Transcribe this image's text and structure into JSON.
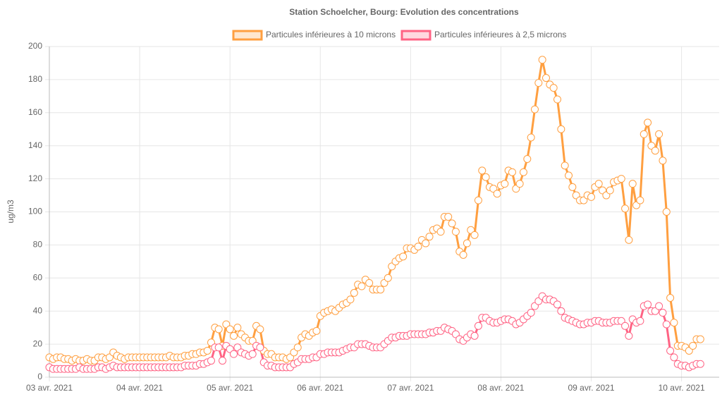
{
  "chart_data": {
    "type": "line",
    "title": "Station Schoelcher, Bourg: Evolution des concentrations",
    "y_label": "ug/m3",
    "xlim": [
      0,
      178
    ],
    "xticks": [
      {
        "value": 0,
        "label": "03 avr. 2021"
      },
      {
        "value": 24,
        "label": "04 avr. 2021"
      },
      {
        "value": 48,
        "label": "05 avr. 2021"
      },
      {
        "value": 72,
        "label": "06 avr. 2021"
      },
      {
        "value": 96,
        "label": "07 avr. 2021"
      },
      {
        "value": 120,
        "label": "08 avr. 2021"
      },
      {
        "value": 144,
        "label": "09 avr. 2021"
      },
      {
        "value": 168,
        "label": "10 avr. 2021"
      }
    ],
    "ylim": [
      0,
      200
    ],
    "yticks": [
      0,
      20,
      40,
      60,
      80,
      100,
      120,
      140,
      160,
      180,
      200
    ],
    "grid": true,
    "legend": "top",
    "x": [
      0,
      1,
      2,
      3,
      4,
      5,
      6,
      7,
      8,
      9,
      10,
      11,
      12,
      13,
      14,
      15,
      16,
      17,
      18,
      19,
      20,
      21,
      22,
      23,
      24,
      25,
      26,
      27,
      28,
      29,
      30,
      31,
      32,
      33,
      34,
      35,
      36,
      37,
      38,
      39,
      40,
      41,
      42,
      43,
      44,
      45,
      46,
      47,
      48,
      49,
      50,
      51,
      52,
      53,
      54,
      55,
      56,
      57,
      58,
      59,
      60,
      61,
      62,
      63,
      64,
      65,
      66,
      67,
      68,
      69,
      70,
      71,
      72,
      73,
      74,
      75,
      76,
      77,
      78,
      79,
      80,
      81,
      82,
      83,
      84,
      85,
      86,
      87,
      88,
      89,
      90,
      91,
      92,
      93,
      94,
      95,
      96,
      97,
      98,
      99,
      100,
      101,
      102,
      103,
      104,
      105,
      106,
      107,
      108,
      109,
      110,
      111,
      112,
      113,
      114,
      115,
      116,
      117,
      118,
      119,
      120,
      121,
      122,
      123,
      124,
      125,
      126,
      127,
      128,
      129,
      130,
      131,
      132,
      133,
      134,
      135,
      136,
      137,
      138,
      139,
      140,
      141,
      142,
      143,
      144,
      145,
      146,
      147,
      148,
      149,
      150,
      151,
      152,
      153,
      154,
      155,
      156,
      157,
      158,
      159,
      160,
      161,
      162,
      163,
      164,
      165,
      166,
      167,
      168,
      169,
      170,
      171,
      172,
      173
    ],
    "series": [
      {
        "name": "Particules inférieures à 10 microns",
        "color": "#ff9f40",
        "values": [
          12,
          11,
          12,
          12,
          11,
          11,
          10,
          11,
          10,
          10,
          11,
          10,
          10,
          12,
          12,
          11,
          12,
          15,
          13,
          12,
          11,
          12,
          12,
          12,
          12,
          12,
          12,
          12,
          12,
          12,
          12,
          12,
          13,
          12,
          12,
          12,
          13,
          13,
          14,
          14,
          15,
          15,
          16,
          21,
          30,
          29,
          19,
          32,
          29,
          25,
          30,
          26,
          24,
          22,
          22,
          31,
          29,
          16,
          14,
          14,
          12,
          12,
          12,
          11,
          12,
          15,
          18,
          24,
          26,
          25,
          27,
          28,
          37,
          39,
          40,
          41,
          40,
          42,
          44,
          45,
          47,
          51,
          56,
          55,
          59,
          57,
          53,
          53,
          53,
          57,
          60,
          67,
          70,
          72,
          73,
          78,
          78,
          77,
          79,
          83,
          81,
          85,
          89,
          90,
          88,
          97,
          97,
          93,
          88,
          76,
          74,
          81,
          89,
          86,
          107,
          125,
          121,
          115,
          114,
          111,
          116,
          117,
          125,
          124,
          114,
          117,
          124,
          132,
          145,
          162,
          178,
          192,
          181,
          177,
          175,
          168,
          150,
          128,
          122,
          115,
          110,
          107,
          107,
          110,
          109,
          115,
          117,
          113,
          110,
          113,
          118,
          119,
          120,
          102,
          83,
          117,
          104,
          107,
          147,
          154,
          140,
          137,
          147,
          131,
          100,
          48,
          33,
          19,
          19,
          18,
          16,
          19,
          23,
          23
        ]
      },
      {
        "name": "Particules inférieures à 2,5 microns",
        "color": "#ff6384",
        "values": [
          6,
          5,
          5,
          5,
          5,
          5,
          5,
          5,
          6,
          5,
          5,
          5,
          5,
          6,
          6,
          5,
          6,
          7,
          6,
          6,
          6,
          6,
          6,
          6,
          6,
          6,
          6,
          6,
          6,
          6,
          6,
          6,
          6,
          6,
          6,
          6,
          7,
          7,
          7,
          7,
          8,
          8,
          9,
          10,
          18,
          18,
          10,
          19,
          17,
          14,
          18,
          15,
          14,
          13,
          14,
          19,
          18,
          9,
          7,
          7,
          6,
          6,
          6,
          6,
          6,
          8,
          9,
          11,
          11,
          11,
          12,
          12,
          14,
          14,
          15,
          15,
          15,
          15,
          16,
          17,
          18,
          18,
          20,
          20,
          20,
          19,
          18,
          18,
          18,
          20,
          22,
          24,
          24,
          25,
          25,
          25,
          26,
          26,
          26,
          26,
          26,
          27,
          27,
          28,
          28,
          30,
          29,
          28,
          26,
          23,
          22,
          24,
          26,
          25,
          31,
          36,
          36,
          34,
          33,
          33,
          34,
          35,
          35,
          34,
          32,
          33,
          35,
          37,
          39,
          43,
          46,
          49,
          47,
          47,
          46,
          44,
          40,
          36,
          35,
          34,
          33,
          32,
          32,
          33,
          33,
          34,
          34,
          33,
          33,
          33,
          34,
          34,
          34,
          31,
          25,
          35,
          33,
          34,
          43,
          44,
          40,
          40,
          43,
          39,
          32,
          16,
          12,
          8,
          7,
          7,
          6,
          7,
          8,
          8
        ]
      }
    ]
  }
}
